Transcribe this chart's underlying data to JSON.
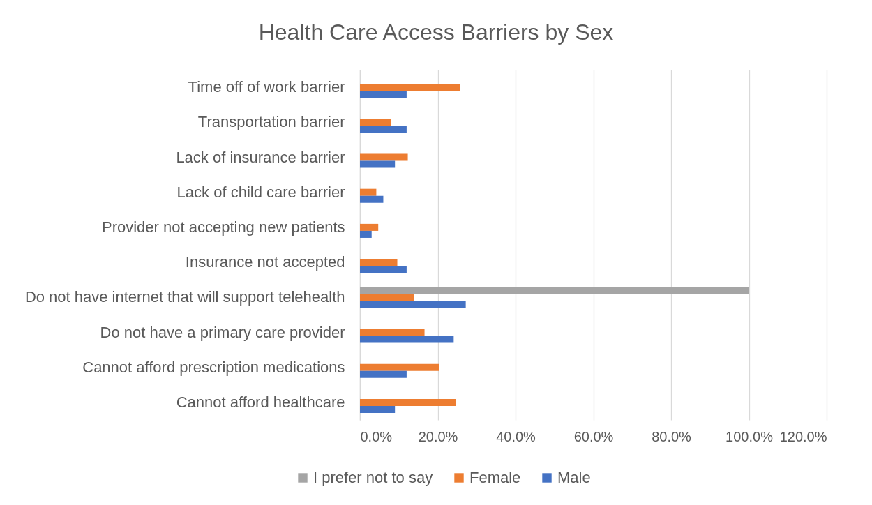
{
  "chart_data": {
    "type": "bar",
    "orientation": "horizontal",
    "title": "Health Care Access Barriers by Sex",
    "categories": [
      "Time off of work barrier",
      "Transportation barrier",
      "Lack of insurance barrier",
      "Lack of child care barrier",
      "Provider not accepting new patients",
      "Insurance not accepted",
      "Do not have internet that will support telehealth",
      "Do not have a primary care provider",
      "Cannot afford prescription medications",
      "Cannot afford healthcare"
    ],
    "series": [
      {
        "name": "I prefer not to say",
        "color": "#a5a5a5",
        "values": [
          null,
          null,
          null,
          null,
          null,
          null,
          100,
          null,
          null,
          null
        ]
      },
      {
        "name": "Female",
        "color": "#ed7d31",
        "values": [
          25.7,
          8.0,
          12.3,
          4.2,
          4.7,
          9.6,
          13.9,
          16.6,
          20.3,
          24.6
        ]
      },
      {
        "name": "Male",
        "color": "#4472c4",
        "values": [
          12.0,
          12.0,
          9.0,
          6.0,
          3.0,
          12.0,
          27.2,
          24.1,
          12.0,
          9.0
        ]
      }
    ],
    "xlim": [
      0,
      120
    ],
    "xticks": [
      {
        "value": 0,
        "label": "0.0%"
      },
      {
        "value": 20,
        "label": "20.0%"
      },
      {
        "value": 40,
        "label": "40.0%"
      },
      {
        "value": 60,
        "label": "60.0%"
      },
      {
        "value": 80,
        "label": "80.0%"
      },
      {
        "value": 100,
        "label": "100.0%"
      },
      {
        "value": 120,
        "label": "120.0%"
      }
    ],
    "grid": "x",
    "legend": "bottom"
  }
}
